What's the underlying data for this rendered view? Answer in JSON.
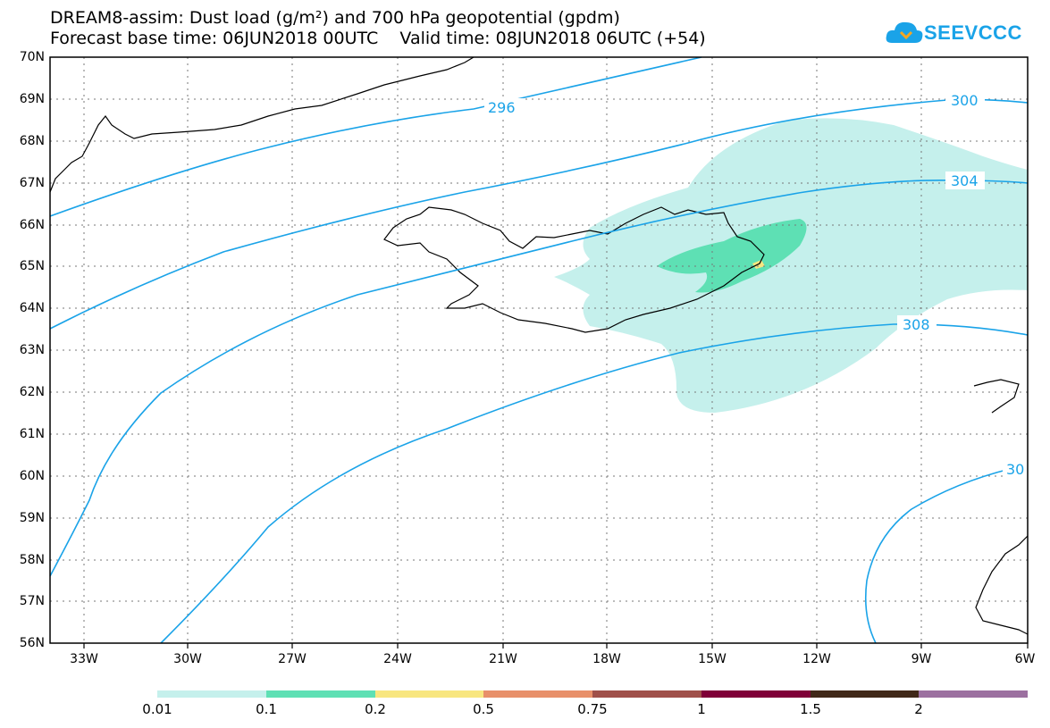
{
  "header": {
    "title_line1": "DREAM8-assim: Dust load (g/m²) and 700 hPa geopotential (gpdm)",
    "title_line2": "Forecast base time: 06JUN2018 00UTC    Valid time: 08JUN2018 06UTC (+54)"
  },
  "logo": {
    "text": "SEEVCCC",
    "color": "#1aa3e8"
  },
  "map": {
    "lat_labels": [
      "70N",
      "69N",
      "68N",
      "67N",
      "66N",
      "65N",
      "64N",
      "63N",
      "62N",
      "61N",
      "60N",
      "59N",
      "58N",
      "57N",
      "56N"
    ],
    "lon_labels": [
      "33W",
      "30W",
      "27W",
      "24W",
      "21W",
      "18W",
      "15W",
      "12W",
      "9W",
      "6W"
    ],
    "contour_labels": [
      "296",
      "300",
      "304",
      "308",
      "30"
    ],
    "contour_color": "#1aa3e8"
  },
  "colorbar": {
    "colors": [
      "#c5f0ec",
      "#5ee0b4",
      "#f8e680",
      "#e8906a",
      "#a0504a",
      "#800038",
      "#402818",
      "#9c70a0"
    ],
    "labels": [
      "0.01",
      "0.1",
      "0.2",
      "0.5",
      "0.75",
      "1",
      "1.5",
      "2"
    ]
  }
}
